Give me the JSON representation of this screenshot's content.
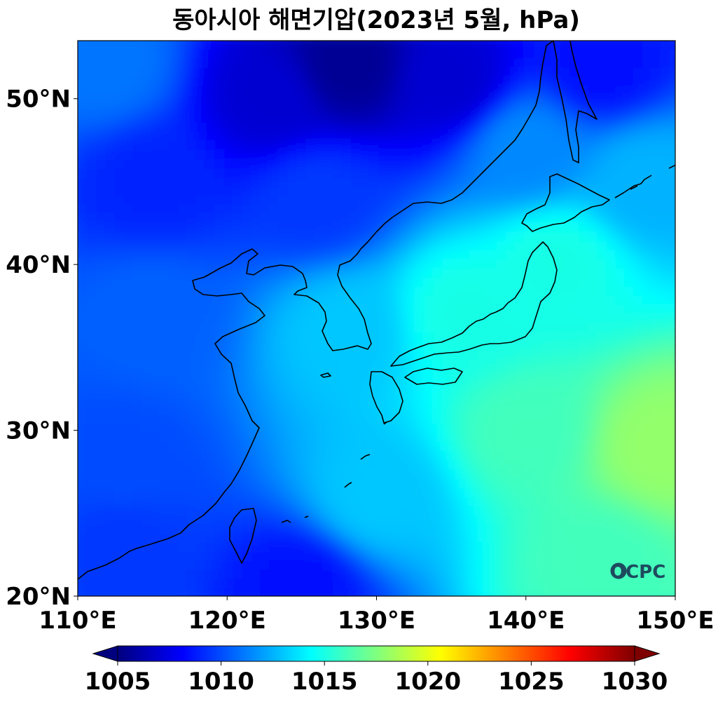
{
  "title": "동아시아 해면기압(2023년 5월, hPa)",
  "logo_text": "OCPC",
  "colors": {
    "jet": [
      "#00007f",
      "#0000ff",
      "#007fff",
      "#00ffff",
      "#7fff7f",
      "#ffff00",
      "#ff7f00",
      "#ff0000",
      "#7f0000"
    ]
  },
  "chart_data": {
    "type": "heatmap",
    "title": "동아시아 해면기압(2023년 5월, hPa)",
    "variable": "sea level pressure",
    "unit": "hPa",
    "xlim": [
      110,
      150
    ],
    "ylim": [
      20,
      53.5
    ],
    "x_ticks": [
      {
        "value": 110,
        "label": "110°E"
      },
      {
        "value": 120,
        "label": "120°E"
      },
      {
        "value": 130,
        "label": "130°E"
      },
      {
        "value": 140,
        "label": "140°E"
      },
      {
        "value": 150,
        "label": "150°E"
      }
    ],
    "y_ticks": [
      {
        "value": 20,
        "label": "20°N"
      },
      {
        "value": 30,
        "label": "30°N"
      },
      {
        "value": 40,
        "label": "40°N"
      },
      {
        "value": 50,
        "label": "50°N"
      }
    ],
    "colorbar": {
      "colormap": "jet",
      "range": [
        1005,
        1030
      ],
      "extend": "both",
      "ticks": [
        {
          "value": 1005,
          "label": "1005"
        },
        {
          "value": 1010,
          "label": "1010"
        },
        {
          "value": 1015,
          "label": "1015"
        },
        {
          "value": 1020,
          "label": "1020"
        },
        {
          "value": 1025,
          "label": "1025"
        },
        {
          "value": 1030,
          "label": "1030"
        }
      ]
    },
    "field_points": [
      {
        "lon": 128,
        "lat": 52,
        "value": 1005.5
      },
      {
        "lon": 123,
        "lat": 50,
        "value": 1007.0
      },
      {
        "lon": 135,
        "lat": 51,
        "value": 1007.0
      },
      {
        "lon": 145,
        "lat": 52,
        "value": 1008.5
      },
      {
        "lon": 112,
        "lat": 52,
        "value": 1011.0
      },
      {
        "lon": 115,
        "lat": 45,
        "value": 1009.0
      },
      {
        "lon": 126,
        "lat": 44,
        "value": 1009.5
      },
      {
        "lon": 140,
        "lat": 47,
        "value": 1011.5
      },
      {
        "lon": 148,
        "lat": 45,
        "value": 1012.5
      },
      {
        "lon": 115,
        "lat": 37,
        "value": 1010.5
      },
      {
        "lon": 113,
        "lat": 28,
        "value": 1010.0
      },
      {
        "lon": 113,
        "lat": 23,
        "value": 1009.5
      },
      {
        "lon": 125,
        "lat": 20.5,
        "value": 1008.5
      },
      {
        "lon": 128,
        "lat": 36,
        "value": 1013.0
      },
      {
        "lon": 136,
        "lat": 37,
        "value": 1015.0
      },
      {
        "lon": 142,
        "lat": 40,
        "value": 1015.0
      },
      {
        "lon": 130,
        "lat": 26,
        "value": 1013.0
      },
      {
        "lon": 140,
        "lat": 30,
        "value": 1016.0
      },
      {
        "lon": 149,
        "lat": 29,
        "value": 1018.0
      },
      {
        "lon": 145,
        "lat": 22,
        "value": 1016.0
      }
    ]
  }
}
